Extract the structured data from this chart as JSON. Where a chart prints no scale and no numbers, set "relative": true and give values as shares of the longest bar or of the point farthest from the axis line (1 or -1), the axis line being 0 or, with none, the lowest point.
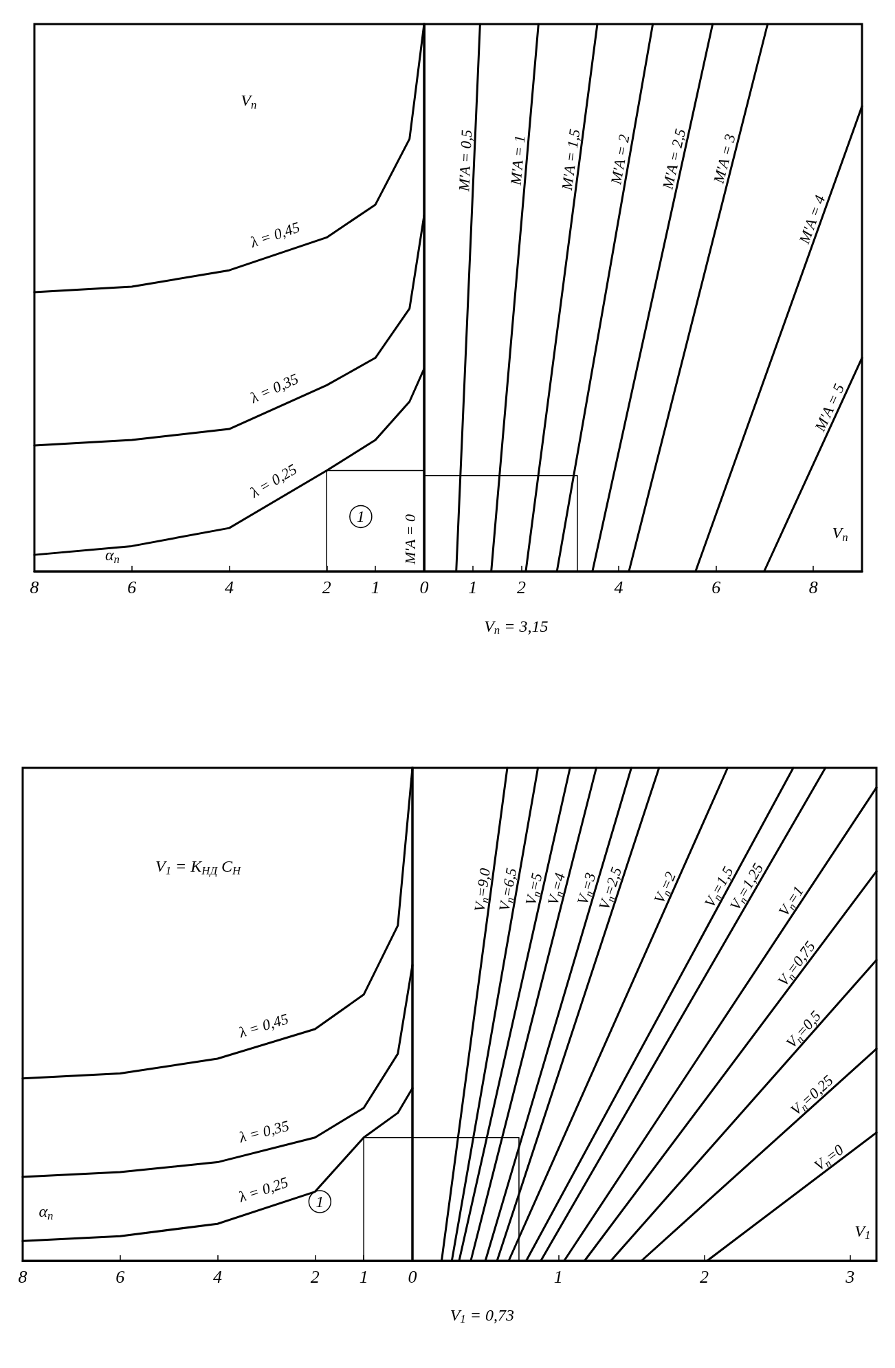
{
  "chart_data": [
    {
      "type": "line",
      "relative": true,
      "xlim": [
        8,
        0
      ],
      "xticks": [
        8,
        6,
        4,
        2,
        1
      ],
      "grid": false,
      "legend": false,
      "marker": "none",
      "line_style": "solid",
      "x": [
        8,
        6,
        4,
        2,
        1,
        0.3,
        0
      ],
      "series": [
        {
          "name": "λ = 0,45",
          "color": "#000000",
          "values": [
            0.51,
            0.52,
            0.55,
            0.61,
            0.67,
            0.79,
            1
          ]
        },
        {
          "name": "λ = 0,35",
          "color": "#000000",
          "values": [
            0.23,
            0.24,
            0.26,
            0.34,
            0.39,
            0.48,
            0.65
          ]
        },
        {
          "name": "λ = 0,25",
          "color": "#000000",
          "values": [
            0.03,
            0.046,
            0.079,
            0.184,
            0.24,
            0.31,
            0.37
          ]
        },
        {
          "color": "#000000",
          "x": [
            2,
            2,
            0
          ],
          "values": [
            0,
            0.184,
            0.184
          ]
        }
      ],
      "annotations": [
        "V$_{п}$",
        "α$_{п}$",
        {
          "text": "1",
          "x": 1.3,
          "y": 0.1
        }
      ]
    },
    {
      "type": "line",
      "relative": true,
      "xlim": [
        0,
        9
      ],
      "xticks": [
        0,
        1,
        2,
        4,
        6,
        8
      ],
      "grid": false,
      "legend": false,
      "marker": "none",
      "line_style": "solid",
      "series": [
        {
          "name": "M'A = 0,5",
          "color": "#000000",
          "x": [
            0.66,
            1.15
          ],
          "values": [
            0,
            1
          ]
        },
        {
          "name": "M'A = 1",
          "color": "#000000",
          "x": [
            1.38,
            2.35
          ],
          "values": [
            0,
            1
          ]
        },
        {
          "name": "M'A = 1,5",
          "color": "#000000",
          "x": [
            2.09,
            3.56
          ],
          "values": [
            0,
            1
          ]
        },
        {
          "name": "M'A = 2",
          "color": "#000000",
          "x": [
            2.73,
            4.7
          ],
          "values": [
            0,
            1
          ]
        },
        {
          "name": "M'A = 2,5",
          "color": "#000000",
          "x": [
            3.46,
            5.93
          ],
          "values": [
            0,
            1
          ]
        },
        {
          "name": "M'A = 3",
          "color": "#000000",
          "x": [
            4.21,
            7.06
          ],
          "values": [
            0,
            1
          ]
        },
        {
          "name": "M'A = 4",
          "color": "#000000",
          "x": [
            5.58,
            9
          ],
          "values": [
            0,
            0.85
          ]
        },
        {
          "name": "M'A = 5",
          "color": "#000000",
          "x": [
            6.99,
            9
          ],
          "values": [
            0,
            0.39
          ]
        },
        {
          "color": "#000000",
          "x": [
            0,
            3.15,
            3.15
          ],
          "values": [
            0.175,
            0.175,
            0
          ]
        }
      ],
      "ref_lines": [
        {
          "axis": "x",
          "value": 0,
          "label": "M'A = 0"
        }
      ],
      "annotations": [
        "V$_{п}$",
        "V$_{п}$ = 3,15"
      ]
    },
    {
      "type": "line",
      "relative": true,
      "xlim": [
        8,
        0
      ],
      "xticks": [
        8,
        6,
        4,
        2,
        1
      ],
      "grid": false,
      "legend": false,
      "marker": "none",
      "line_style": "solid",
      "x": [
        8,
        6,
        4,
        2,
        1,
        0.3,
        0
      ],
      "series": [
        {
          "name": "λ = 0,45",
          "color": "#000000",
          "values": [
            0.37,
            0.38,
            0.41,
            0.47,
            0.54,
            0.68,
            1
          ]
        },
        {
          "name": "λ = 0,35",
          "color": "#000000",
          "values": [
            0.17,
            0.18,
            0.2,
            0.25,
            0.31,
            0.42,
            0.6
          ]
        },
        {
          "name": "λ = 0,25",
          "color": "#000000",
          "values": [
            0.04,
            0.05,
            0.075,
            0.14,
            0.25,
            0.3,
            0.35
          ]
        },
        {
          "color": "#000000",
          "x": [
            1,
            1,
            0
          ],
          "values": [
            0,
            0.25,
            0.25
          ]
        }
      ],
      "annotations": [
        "V$_{1}$ = K$_{НД}$ C$_{Н}$",
        "α$_{п}$",
        {
          "text": "1",
          "x": 1.9,
          "y": 0.12
        }
      ]
    },
    {
      "type": "line",
      "relative": true,
      "xlim": [
        0,
        3.18
      ],
      "xticks": [
        0,
        1,
        2,
        3
      ],
      "grid": false,
      "legend": false,
      "marker": "none",
      "line_style": "solid",
      "series": [
        {
          "name": "V$_{п}$=9,0",
          "color": "#000000",
          "x": [
            0.2,
            0.65
          ],
          "values": [
            0,
            1
          ]
        },
        {
          "name": "V$_{п}$=6,5",
          "color": "#000000",
          "x": [
            0.27,
            0.86
          ],
          "values": [
            0,
            1
          ]
        },
        {
          "name": "V$_{п}$=5",
          "color": "#000000",
          "x": [
            0.32,
            1.08
          ],
          "values": [
            0,
            1
          ]
        },
        {
          "name": "V$_{п}$=4",
          "color": "#000000",
          "x": [
            0.4,
            1.26
          ],
          "values": [
            0,
            1
          ]
        },
        {
          "name": "V$_{п}$=3",
          "color": "#000000",
          "x": [
            0.5,
            1.5
          ],
          "values": [
            0,
            1
          ]
        },
        {
          "name": "V$_{п}$=2,5",
          "color": "#000000",
          "x": [
            0.58,
            1.69
          ],
          "values": [
            0,
            1
          ]
        },
        {
          "name": "V$_{п}$=2",
          "color": "#000000",
          "x": [
            0.66,
            2.16
          ],
          "values": [
            0,
            1
          ]
        },
        {
          "name": "V$_{п}$=1,5",
          "color": "#000000",
          "x": [
            0.78,
            2.61
          ],
          "values": [
            0,
            1
          ]
        },
        {
          "name": "V$_{п}$=1,25",
          "color": "#000000",
          "x": [
            0.88,
            2.83
          ],
          "values": [
            0,
            1
          ]
        },
        {
          "name": "V$_{п}$=1",
          "color": "#000000",
          "x": [
            1.04,
            3.18
          ],
          "values": [
            0,
            0.96
          ]
        },
        {
          "name": "V$_{п}$=0,75",
          "color": "#000000",
          "x": [
            1.18,
            3.18
          ],
          "values": [
            0,
            0.79
          ]
        },
        {
          "name": "V$_{п}$=0,5",
          "color": "#000000",
          "x": [
            1.36,
            3.18
          ],
          "values": [
            0,
            0.61
          ]
        },
        {
          "name": "V$_{п}$=0,25",
          "color": "#000000",
          "x": [
            1.57,
            3.18
          ],
          "values": [
            0,
            0.43
          ]
        },
        {
          "name": "V$_{п}$=0",
          "color": "#000000",
          "x": [
            2.02,
            3.18
          ],
          "values": [
            0,
            0.26
          ]
        },
        {
          "color": "#000000",
          "x": [
            0,
            0.73,
            0.73
          ],
          "values": [
            0.25,
            0.25,
            0
          ]
        }
      ],
      "annotations": [
        "V$_{1}$",
        "V$_{1}$ = 0,73"
      ]
    }
  ]
}
